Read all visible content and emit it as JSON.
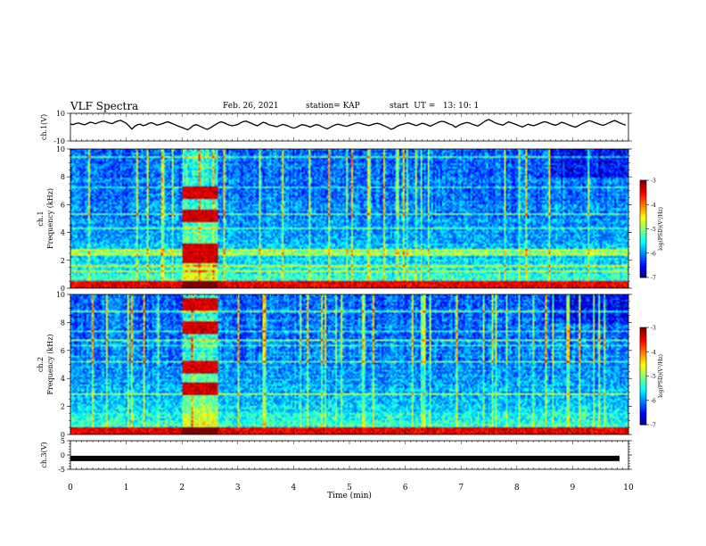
{
  "header": {
    "title": "VLF Spectra",
    "date": "Feb. 26, 2021",
    "station": "station= KAP",
    "start": "start  UT =   13: 10: 1"
  },
  "chart_data": [
    {
      "type": "line",
      "ylabel": "ch.1(V)",
      "ylim": [
        -10,
        10
      ],
      "yticks": [
        "10",
        "-10"
      ],
      "xlim": [
        0,
        10
      ],
      "x_step_min": 0.05,
      "values": [
        3.0,
        2.6,
        3.8,
        4.2,
        3.2,
        2.4,
        3.6,
        5.0,
        4.6,
        3.4,
        4.8,
        5.6,
        6.2,
        5.2,
        4.2,
        3.6,
        5.2,
        6.4,
        7.0,
        5.4,
        4.0,
        1.2,
        -2.0,
        0.6,
        2.4,
        3.0,
        1.6,
        2.2,
        3.8,
        4.6,
        3.6,
        2.0,
        2.8,
        3.6,
        4.8,
        5.4,
        4.2,
        3.0,
        1.8,
        0.6,
        -0.4,
        -1.6,
        -2.8,
        -0.8,
        1.6,
        2.6,
        1.6,
        0.2,
        -1.2,
        -2.4,
        -1.0,
        0.8,
        2.6,
        4.4,
        5.4,
        4.6,
        3.2,
        2.0,
        1.4,
        2.0,
        2.8,
        4.4,
        5.8,
        6.2,
        5.0,
        3.8,
        2.4,
        1.4,
        3.0,
        5.0,
        4.2,
        2.6,
        1.8,
        1.2,
        0.4,
        1.6,
        2.8,
        2.2,
        1.2,
        -0.2,
        -1.0,
        -0.2,
        1.4,
        2.6,
        2.0,
        1.0,
        0.2,
        1.4,
        2.6,
        2.0,
        0.6,
        -0.6,
        -1.8,
        -0.4,
        1.2,
        2.4,
        3.0,
        2.2,
        1.4,
        0.8,
        1.8,
        2.8,
        3.8,
        4.6,
        4.0,
        3.0,
        2.2,
        1.6,
        2.4,
        3.4,
        4.0,
        3.2,
        1.8,
        0.6,
        -0.6,
        -2.2,
        -1.2,
        0.8,
        2.0,
        2.8,
        3.6,
        4.4,
        3.6,
        2.6,
        1.6,
        2.8,
        4.0,
        3.4,
        2.2,
        1.0,
        2.4,
        3.8,
        5.2,
        6.0,
        5.6,
        4.2,
        3.0,
        2.0,
        -0.2,
        1.6,
        3.0,
        4.0,
        4.8,
        4.2,
        3.0,
        2.0,
        1.2,
        2.8,
        5.0,
        6.8,
        7.8,
        6.4,
        4.8,
        3.6,
        2.8,
        2.0,
        3.8,
        5.4,
        4.6,
        3.4,
        2.4,
        1.2,
        0.2,
        1.6,
        3.0,
        2.2,
        1.4,
        2.4,
        3.6,
        4.8,
        5.6,
        4.8,
        3.6,
        2.6,
        2.0,
        3.4,
        5.0,
        4.2,
        3.0,
        1.8,
        0.8,
        0.0,
        1.4,
        3.0,
        4.2,
        5.6,
        6.6,
        5.8,
        4.6,
        3.6,
        2.6,
        1.8,
        3.0,
        4.4,
        5.6,
        6.8,
        5.6,
        4.2,
        3.0,
        2.0
      ]
    },
    {
      "type": "heatmap",
      "ylabel": "ch.1 Frequency (kHz)",
      "ylim": [
        0,
        10
      ],
      "yticks": [
        "0",
        "2",
        "4",
        "6",
        "8",
        "10"
      ],
      "xlim": [
        0,
        10
      ],
      "colorbar": {
        "label": "log(PSD)(V²/Hz)",
        "range": [
          -7,
          -3
        ],
        "ticks": [
          "-3",
          "-4",
          "-5",
          "-6",
          "-7"
        ]
      },
      "burst_min": [
        2.0,
        2.65
      ],
      "burst_bands_khz": [
        2.2,
        2.8,
        5.2,
        6.8
      ]
    },
    {
      "type": "heatmap",
      "ylabel": "ch.2 Frequency (kHz)",
      "ylim": [
        0,
        10
      ],
      "yticks": [
        "0",
        "2",
        "4",
        "6",
        "8",
        "10"
      ],
      "xlim": [
        0,
        10
      ],
      "colorbar": {
        "label": "log(PSD)(V²/Hz)",
        "range": [
          -7,
          -3
        ],
        "ticks": [
          "-3",
          "-4",
          "-5",
          "-6",
          "-7"
        ]
      },
      "burst_min": [
        2.0,
        2.65
      ],
      "burst_bands_khz": [
        3.3,
        4.8,
        7.6,
        9.3
      ]
    },
    {
      "type": "line",
      "ylabel": "ch.3(V)",
      "ylim": [
        -5,
        5
      ],
      "yticks": [
        "5",
        "0",
        "-5"
      ],
      "xlim": [
        0,
        10
      ],
      "constant_value": -1.2
    }
  ],
  "xaxis": {
    "label": "Time  (min)",
    "ticks": [
      "0",
      "1",
      "2",
      "3",
      "4",
      "5",
      "6",
      "7",
      "8",
      "9",
      "10"
    ]
  }
}
